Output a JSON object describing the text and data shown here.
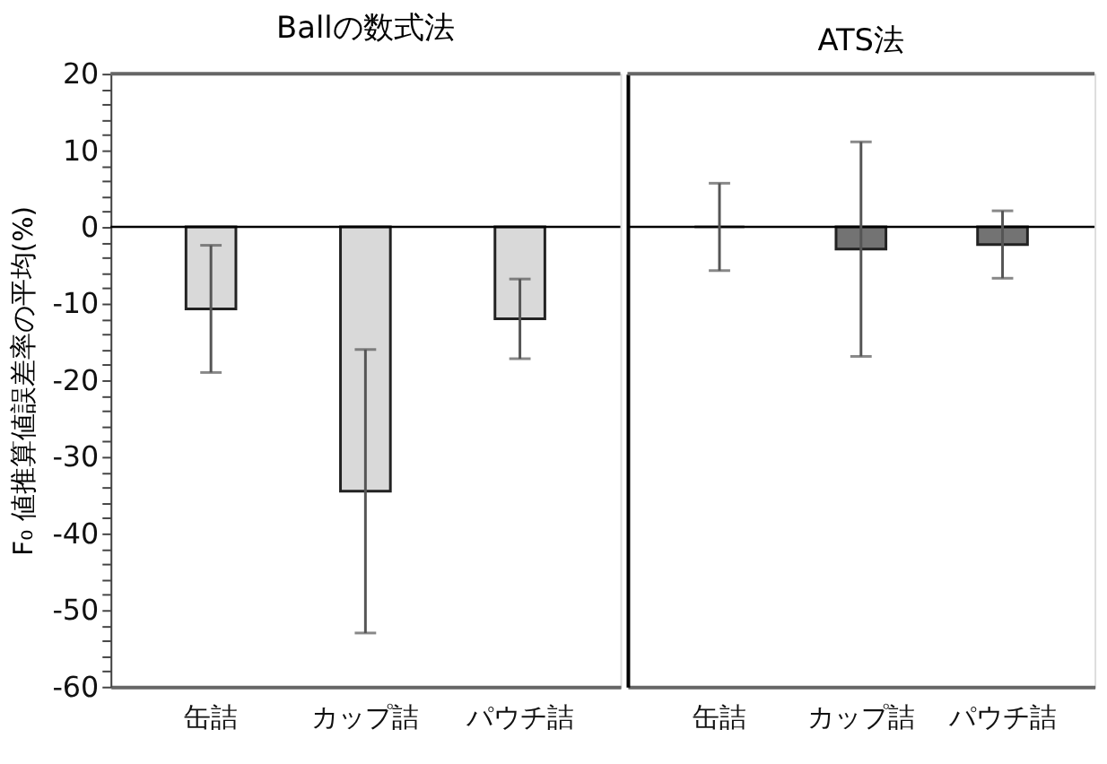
{
  "chart_data": [
    {
      "type": "bar",
      "title": "Ballの数式法",
      "ylabel": "F₀ 値推算値誤差率の平均(%)",
      "categories": [
        "缶詰",
        "カップ詰",
        "パウチ詰"
      ],
      "values": [
        -10.7,
        -34.5,
        -12.0
      ],
      "errors": [
        8.3,
        18.5,
        5.2
      ],
      "color": "#d9d9d9",
      "ylim": [
        -60,
        20
      ],
      "yticks": [
        -60,
        {
          "value": -58,
          "label": null
        },
        {
          "value": -56,
          "label": null
        },
        {
          "value": -54,
          "label": null
        },
        {
          "value": -52,
          "label": null
        },
        -50,
        {
          "value": -48,
          "label": null
        },
        {
          "value": -46,
          "label": null
        },
        {
          "value": -44,
          "label": null
        },
        {
          "value": -42,
          "label": null
        },
        -40,
        {
          "value": -38,
          "label": null
        },
        {
          "value": -36,
          "label": null
        },
        {
          "value": -34,
          "label": null
        },
        {
          "value": -32,
          "label": null
        },
        -30,
        {
          "value": -28,
          "label": null
        },
        {
          "value": -26,
          "label": null
        },
        {
          "value": -24,
          "label": null
        },
        {
          "value": -22,
          "label": null
        },
        -20,
        {
          "value": -18,
          "label": null
        },
        {
          "value": -16,
          "label": null
        },
        {
          "value": -14,
          "label": null
        },
        {
          "value": -12,
          "label": null
        },
        -10,
        {
          "value": -8,
          "label": null
        },
        {
          "value": -6,
          "label": null
        },
        {
          "value": -4,
          "label": null
        },
        {
          "value": -2,
          "label": null
        },
        0,
        {
          "value": 2,
          "label": null
        },
        {
          "value": 4,
          "label": null
        },
        {
          "value": 6,
          "label": null
        },
        {
          "value": 8,
          "label": null
        },
        10,
        {
          "value": 12,
          "label": null
        },
        {
          "value": 14,
          "label": null
        },
        {
          "value": 16,
          "label": null
        },
        {
          "value": 18,
          "label": null
        },
        20
      ],
      "ref_lines": [
        {
          "axis": "y",
          "value": 0,
          "color": "#000000"
        }
      ]
    },
    {
      "type": "bar",
      "title": "ATS法",
      "categories": [
        "缶詰",
        "カップ詰",
        "パウチ詰"
      ],
      "values": [
        0,
        -2.9,
        -2.3
      ],
      "errors": [
        5.7,
        14.0,
        4.4
      ],
      "color": "#737373",
      "ylim": [
        -60,
        20
      ],
      "tick_labels": "x",
      "ref_lines": [
        {
          "axis": "y",
          "value": 0,
          "color": "#000000"
        }
      ]
    }
  ]
}
